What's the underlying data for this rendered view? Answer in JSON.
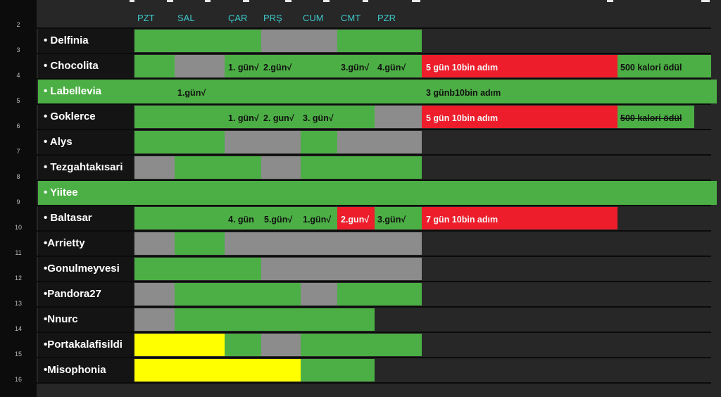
{
  "colors": {
    "green": "#4caf45",
    "gray": "#8c8c8c",
    "red": "#ee1d2b",
    "yellow": "#ffff00",
    "dark": "#272727",
    "day_label": "#3ec6c8"
  },
  "row_numbers": [
    "2",
    "3",
    "4",
    "5",
    "6",
    "7",
    "8",
    "9",
    "10",
    "11",
    "12",
    "13",
    "14",
    "15",
    "16"
  ],
  "days": [
    "PZT",
    "SAL",
    "ÇAR",
    "PRŞ",
    "CUM",
    "CMT",
    "PZR"
  ],
  "rows": [
    {
      "name": "•  Delfinia",
      "full_green": false
    },
    {
      "name": "•  Chocolita",
      "full_green": false
    },
    {
      "name": "•  Labellevia",
      "full_green": true
    },
    {
      "name": "•  Goklerce",
      "full_green": false
    },
    {
      "name": "•  Alys",
      "full_green": false
    },
    {
      "name": "• Tezgahtakısari",
      "full_green": false
    },
    {
      "name": "• Yiitee",
      "full_green": true
    },
    {
      "name": "• Baltasar",
      "full_green": false
    },
    {
      "name": "•Arrietty",
      "full_green": false
    },
    {
      "name": "•Gonulmeyvesi",
      "full_green": false
    },
    {
      "name": "•Pandora27",
      "full_green": false
    },
    {
      "name": "•Nnurc",
      "full_green": false
    },
    {
      "name": "•Portakalafisildi",
      "full_green": false
    },
    {
      "name": "•Misophonia",
      "full_green": false
    }
  ],
  "notes": {
    "chocolita": [
      "1. gün√",
      "2.gün√",
      "3.gün√",
      "4.gün√",
      "5 gün 10bin adım",
      "500 kalori ödül"
    ],
    "labellevia": [
      "1.gün√",
      "3 günb10bin adım"
    ],
    "goklerce": [
      "1. gün√",
      "2. gun√",
      "3. gün√",
      "5 gün 10bin adım",
      "500 kalori ödül"
    ],
    "baltasar": [
      "4. gün",
      "5.gün√",
      "1.gün√",
      "2.gun√",
      "3.gün√",
      "7 gün 10bin adım"
    ]
  }
}
